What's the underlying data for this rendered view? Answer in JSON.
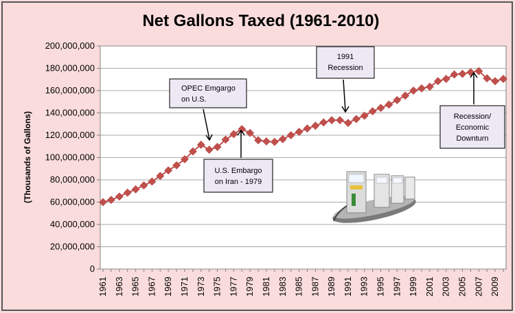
{
  "chart_data": {
    "type": "line",
    "title": "Net Gallons Taxed (1961-2010)",
    "xlabel": "",
    "ylabel": "(Thousands of Gallons)",
    "ylim": [
      0,
      200000000
    ],
    "yticks": [
      "0",
      "20,000,000",
      "40,000,000",
      "60,000,000",
      "80,000,000",
      "100,000,000",
      "120,000,000",
      "140,000,000",
      "160,000,000",
      "180,000,000",
      "200,000,000"
    ],
    "xticks": [
      "1961",
      "1963",
      "1965",
      "1967",
      "1969",
      "1971",
      "1973",
      "1975",
      "1977",
      "1979",
      "1981",
      "1983",
      "1985",
      "1987",
      "1989",
      "1991",
      "1993",
      "1995",
      "1997",
      "1999",
      "2001",
      "2003",
      "2005",
      "2007",
      "2009"
    ],
    "grid": true,
    "x": [
      1961,
      1962,
      1963,
      1964,
      1965,
      1966,
      1967,
      1968,
      1969,
      1970,
      1971,
      1972,
      1973,
      1974,
      1975,
      1976,
      1977,
      1978,
      1979,
      1980,
      1981,
      1982,
      1983,
      1984,
      1985,
      1986,
      1987,
      1988,
      1989,
      1990,
      1991,
      1992,
      1993,
      1994,
      1995,
      1996,
      1997,
      1998,
      1999,
      2000,
      2001,
      2002,
      2003,
      2004,
      2005,
      2006,
      2007,
      2008,
      2009,
      2010
    ],
    "series": [
      {
        "color": "#c0504d",
        "values": [
          60000000,
          62000000,
          65000000,
          68500000,
          71500000,
          75000000,
          78500000,
          83500000,
          88500000,
          93000000,
          98500000,
          105500000,
          111500000,
          107000000,
          109500000,
          116000000,
          121000000,
          125500000,
          122000000,
          115500000,
          114500000,
          114000000,
          116500000,
          120000000,
          123000000,
          126000000,
          128500000,
          131500000,
          133500000,
          133500000,
          131000000,
          134500000,
          137500000,
          141500000,
          144500000,
          147500000,
          151500000,
          155500000,
          160000000,
          162000000,
          163500000,
          168500000,
          170500000,
          174500000,
          175000000,
          176500000,
          177500000,
          171000000,
          168500000,
          170500000
        ]
      }
    ],
    "annotations": [
      {
        "lines": [
          "OPEC Emgargo",
          "on U.S."
        ],
        "target_year": 1974
      },
      {
        "lines": [
          "U.S. Embargo",
          "on Iran - 1979"
        ],
        "target_year": 1978
      },
      {
        "lines": [
          "1991",
          "Recession"
        ],
        "target_year": 1991
      },
      {
        "lines": [
          "Recession/",
          "Economic",
          "Downturn"
        ],
        "target_year": 2007
      }
    ],
    "colors": {
      "background": "#fadcdc",
      "plot_background": "#ffffff",
      "marker": "#c0504d",
      "annotation_box": "#ece8f4"
    }
  },
  "image": {
    "icon": "gas-pumps-icon"
  }
}
